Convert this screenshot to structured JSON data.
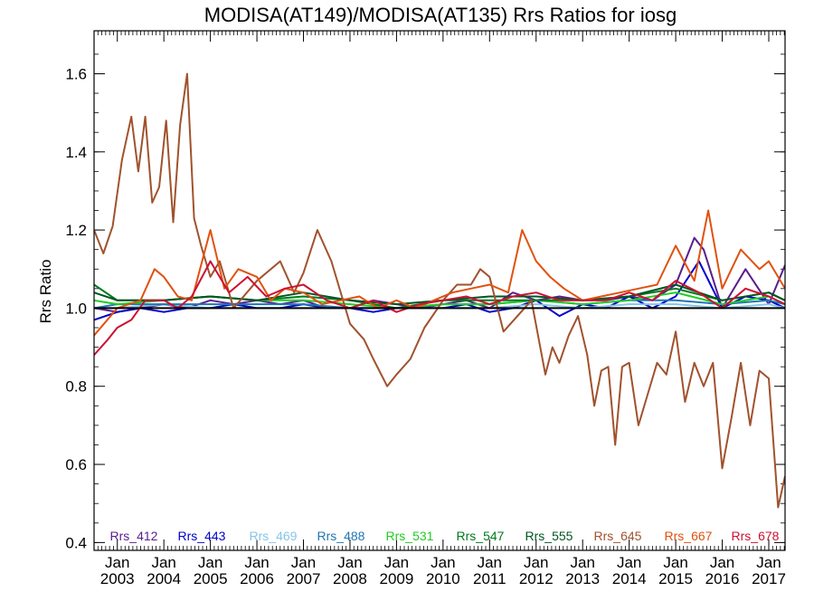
{
  "chart_data": {
    "type": "line",
    "title": "MODISA(AT149)/MODISA(AT135)  Rrs Ratios for iosg",
    "ylabel": "Rrs Ratio",
    "xlabel": "",
    "ylim": [
      0.38,
      1.71
    ],
    "xlim": [
      2002.5,
      2017.35
    ],
    "yticks": [
      0.4,
      0.6,
      0.8,
      1.0,
      1.2,
      1.4,
      1.6
    ],
    "ytick_labels": [
      "0.4",
      "0.6",
      "0.8",
      "1.0",
      "1.2",
      "1.4",
      "1.6"
    ],
    "xticks": [
      2003,
      2004,
      2005,
      2006,
      2007,
      2008,
      2009,
      2010,
      2011,
      2012,
      2013,
      2014,
      2015,
      2016,
      2017
    ],
    "xtick_labels": [
      [
        "Jan",
        "2003"
      ],
      [
        "Jan",
        "2004"
      ],
      [
        "Jan",
        "2005"
      ],
      [
        "Jan",
        "2006"
      ],
      [
        "Jan",
        "2007"
      ],
      [
        "Jan",
        "2008"
      ],
      [
        "Jan",
        "2009"
      ],
      [
        "Jan",
        "2010"
      ],
      [
        "Jan",
        "2011"
      ],
      [
        "Jan",
        "2012"
      ],
      [
        "Jan",
        "2013"
      ],
      [
        "Jan",
        "2014"
      ],
      [
        "Jan",
        "2015"
      ],
      [
        "Jan",
        "2016"
      ],
      [
        "Jan",
        "2017"
      ]
    ],
    "reference_line": 1.0,
    "legend_position": "bottom",
    "series": [
      {
        "name": "Rrs_412",
        "color": "#5a1e8c",
        "x": [
          2002.5,
          2003.0,
          2003.5,
          2004.0,
          2004.5,
          2005.0,
          2005.5,
          2006.0,
          2006.5,
          2007.0,
          2007.5,
          2008.0,
          2008.5,
          2009.0,
          2009.5,
          2010.0,
          2010.5,
          2011.0,
          2011.5,
          2012.0,
          2012.5,
          2013.0,
          2013.5,
          2014.0,
          2014.5,
          2015.0,
          2015.4,
          2015.6,
          2016.0,
          2016.5,
          2017.0,
          2017.35
        ],
        "y": [
          1.0,
          0.99,
          1.0,
          1.01,
          1.0,
          1.02,
          1.01,
          1.02,
          1.01,
          1.02,
          1.0,
          1.0,
          1.02,
          1.01,
          1.0,
          1.01,
          1.02,
          1.0,
          1.04,
          1.02,
          1.03,
          1.02,
          1.02,
          1.03,
          1.02,
          1.06,
          1.18,
          1.15,
          1.0,
          1.1,
          1.01,
          1.11
        ]
      },
      {
        "name": "Rrs_443",
        "color": "#0000cc",
        "x": [
          2002.5,
          2003.0,
          2003.5,
          2004.0,
          2004.5,
          2005.0,
          2005.5,
          2006.0,
          2006.5,
          2007.0,
          2007.5,
          2008.0,
          2008.5,
          2009.0,
          2009.5,
          2010.0,
          2010.5,
          2011.0,
          2011.5,
          2012.0,
          2012.5,
          2013.0,
          2013.5,
          2014.0,
          2014.5,
          2015.0,
          2015.5,
          2016.0,
          2016.5,
          2017.0,
          2017.35
        ],
        "y": [
          0.97,
          0.99,
          1.0,
          0.99,
          1.0,
          1.0,
          1.01,
          1.0,
          1.0,
          1.01,
          1.0,
          1.0,
          0.99,
          1.0,
          1.0,
          1.0,
          1.01,
          0.99,
          1.0,
          1.02,
          0.98,
          1.01,
          1.0,
          1.03,
          1.0,
          1.03,
          1.12,
          1.0,
          1.03,
          1.02,
          1.0
        ]
      },
      {
        "name": "Rrs_469",
        "color": "#87c5e8",
        "x": [
          2002.5,
          2003.0,
          2004.0,
          2005.0,
          2006.0,
          2007.0,
          2008.0,
          2009.0,
          2010.0,
          2011.0,
          2012.0,
          2013.0,
          2014.0,
          2015.0,
          2016.0,
          2017.0,
          2017.35
        ],
        "y": [
          1.0,
          1.0,
          1.01,
          1.0,
          1.0,
          1.0,
          1.0,
          1.0,
          1.0,
          1.0,
          1.01,
          1.0,
          1.01,
          1.01,
          1.0,
          1.01,
          1.0
        ]
      },
      {
        "name": "Rrs_488",
        "color": "#1f77b4",
        "x": [
          2002.5,
          2003.0,
          2004.0,
          2005.0,
          2006.0,
          2007.0,
          2008.0,
          2009.0,
          2010.0,
          2011.0,
          2012.0,
          2013.0,
          2014.0,
          2015.0,
          2016.0,
          2017.0,
          2017.35
        ],
        "y": [
          1.0,
          1.01,
          1.01,
          1.01,
          1.01,
          1.01,
          1.0,
          1.0,
          1.01,
          1.01,
          1.02,
          1.01,
          1.02,
          1.02,
          1.01,
          1.02,
          1.01
        ]
      },
      {
        "name": "Rrs_531",
        "color": "#22cc22",
        "x": [
          2002.5,
          2003.0,
          2004.0,
          2005.0,
          2006.0,
          2007.0,
          2008.0,
          2009.0,
          2010.0,
          2011.0,
          2012.0,
          2013.0,
          2014.0,
          2015.0,
          2016.0,
          2017.0,
          2017.35
        ],
        "y": [
          1.02,
          1.01,
          1.02,
          1.03,
          1.02,
          1.02,
          1.01,
          1.0,
          1.01,
          1.01,
          1.02,
          1.01,
          1.02,
          1.04,
          1.01,
          1.03,
          1.01
        ]
      },
      {
        "name": "Rrs_547",
        "color": "#007a1e",
        "x": [
          2002.5,
          2003.0,
          2004.0,
          2005.0,
          2006.0,
          2007.0,
          2008.0,
          2009.0,
          2010.0,
          2011.0,
          2012.0,
          2013.0,
          2014.0,
          2015.0,
          2016.0,
          2017.0,
          2017.35
        ],
        "y": [
          1.06,
          1.02,
          1.02,
          1.03,
          1.02,
          1.03,
          1.02,
          1.0,
          1.02,
          1.02,
          1.02,
          1.02,
          1.03,
          1.05,
          1.02,
          1.04,
          1.02
        ]
      },
      {
        "name": "Rrs_555",
        "color": "#005522",
        "x": [
          2002.5,
          2003.0,
          2004.0,
          2005.0,
          2006.0,
          2007.0,
          2008.0,
          2009.0,
          2010.0,
          2011.0,
          2012.0,
          2013.0,
          2014.0,
          2015.0,
          2016.0,
          2017.0,
          2017.35
        ],
        "y": [
          1.04,
          1.02,
          1.02,
          1.03,
          1.02,
          1.04,
          1.02,
          1.01,
          1.02,
          1.03,
          1.03,
          1.02,
          1.03,
          1.06,
          1.02,
          1.04,
          1.02
        ]
      },
      {
        "name": "Rrs_645",
        "color": "#a0522d",
        "x": [
          2002.5,
          2002.7,
          2002.9,
          2003.1,
          2003.3,
          2003.45,
          2003.6,
          2003.75,
          2003.9,
          2004.05,
          2004.2,
          2004.35,
          2004.5,
          2004.65,
          2004.8,
          2005.0,
          2005.2,
          2005.5,
          2006.0,
          2006.5,
          2006.8,
          2007.0,
          2007.3,
          2007.6,
          2008.0,
          2008.3,
          2008.5,
          2008.8,
          2009.0,
          2009.3,
          2009.6,
          2010.0,
          2010.3,
          2010.6,
          2010.8,
          2011.0,
          2011.3,
          2011.6,
          2011.9,
          2012.2,
          2012.35,
          2012.5,
          2012.7,
          2012.9,
          2013.1,
          2013.25,
          2013.4,
          2013.55,
          2013.7,
          2013.85,
          2014.0,
          2014.2,
          2014.4,
          2014.6,
          2014.8,
          2015.0,
          2015.2,
          2015.4,
          2015.6,
          2015.8,
          2016.0,
          2016.2,
          2016.4,
          2016.6,
          2016.8,
          2017.0,
          2017.2,
          2017.35
        ],
        "y": [
          1.2,
          1.14,
          1.21,
          1.38,
          1.49,
          1.35,
          1.49,
          1.27,
          1.31,
          1.48,
          1.22,
          1.47,
          1.6,
          1.23,
          1.16,
          1.08,
          1.12,
          1.0,
          1.07,
          1.12,
          1.04,
          1.09,
          1.2,
          1.12,
          0.96,
          0.92,
          0.87,
          0.8,
          0.83,
          0.87,
          0.95,
          1.02,
          1.06,
          1.06,
          1.1,
          1.08,
          0.94,
          0.98,
          1.02,
          0.83,
          0.9,
          0.86,
          0.93,
          0.98,
          0.88,
          0.75,
          0.84,
          0.85,
          0.65,
          0.85,
          0.86,
          0.7,
          0.78,
          0.86,
          0.83,
          0.94,
          0.76,
          0.86,
          0.8,
          0.86,
          0.59,
          0.72,
          0.86,
          0.7,
          0.84,
          0.82,
          0.49,
          0.57
        ]
      },
      {
        "name": "Rrs_667",
        "color": "#e0520f",
        "x": [
          2002.5,
          2003.0,
          2003.5,
          2003.8,
          2004.0,
          2004.3,
          2004.6,
          2005.0,
          2005.3,
          2005.6,
          2006.0,
          2006.3,
          2006.6,
          2007.0,
          2007.4,
          2007.8,
          2008.2,
          2008.6,
          2009.0,
          2009.4,
          2009.8,
          2010.2,
          2010.6,
          2011.0,
          2011.4,
          2011.7,
          2012.0,
          2012.3,
          2012.6,
          2013.0,
          2013.4,
          2013.8,
          2014.2,
          2014.6,
          2015.0,
          2015.4,
          2015.7,
          2016.0,
          2016.4,
          2016.8,
          2017.0,
          2017.35
        ],
        "y": [
          0.93,
          1.0,
          1.02,
          1.1,
          1.08,
          1.03,
          1.02,
          1.2,
          1.05,
          1.1,
          1.08,
          1.02,
          1.05,
          1.04,
          1.01,
          1.02,
          1.03,
          1.0,
          1.02,
          1.0,
          1.02,
          1.04,
          1.05,
          1.06,
          1.04,
          1.2,
          1.12,
          1.08,
          1.05,
          1.02,
          1.03,
          1.04,
          1.05,
          1.06,
          1.16,
          1.07,
          1.25,
          1.05,
          1.15,
          1.1,
          1.12,
          1.05
        ]
      },
      {
        "name": "Rrs_678",
        "color": "#cc1133",
        "x": [
          2002.5,
          2002.8,
          2003.0,
          2003.3,
          2003.6,
          2004.0,
          2004.3,
          2004.6,
          2005.0,
          2005.4,
          2005.8,
          2006.2,
          2006.6,
          2007.0,
          2007.5,
          2008.0,
          2008.5,
          2009.0,
          2009.5,
          2010.0,
          2010.5,
          2011.0,
          2011.5,
          2012.0,
          2012.5,
          2013.0,
          2013.5,
          2014.0,
          2014.5,
          2015.0,
          2015.5,
          2016.0,
          2016.5,
          2017.0,
          2017.35
        ],
        "y": [
          0.88,
          0.92,
          0.95,
          0.97,
          1.02,
          1.02,
          1.0,
          1.03,
          1.12,
          1.04,
          1.08,
          1.03,
          1.05,
          1.06,
          1.02,
          1.0,
          1.02,
          0.99,
          1.01,
          1.02,
          1.03,
          1.01,
          1.03,
          1.04,
          1.02,
          1.02,
          1.02,
          1.04,
          1.02,
          1.07,
          1.04,
          1.0,
          1.05,
          1.03,
          1.01
        ]
      }
    ]
  }
}
